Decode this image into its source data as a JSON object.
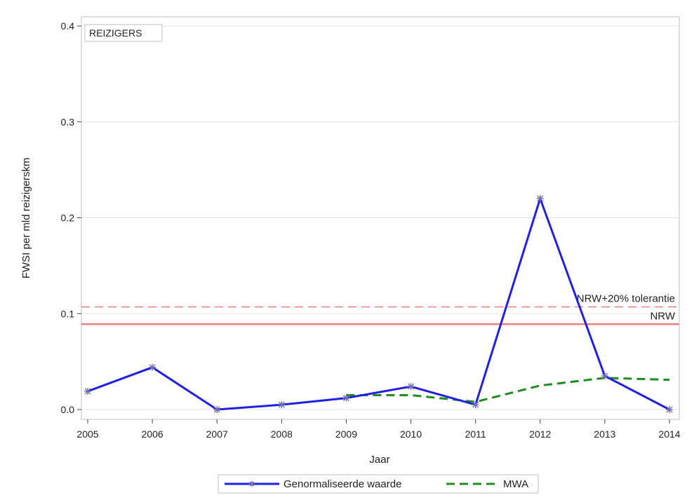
{
  "chart_data": {
    "type": "line",
    "inset_label": "REIZIGERS",
    "xlabel": "Jaar",
    "ylabel": "FWSI per mld reizigerskm",
    "x": [
      2005,
      2006,
      2007,
      2008,
      2009,
      2010,
      2011,
      2012,
      2013,
      2014
    ],
    "xlim": [
      2005,
      2014
    ],
    "ylim": [
      0,
      0.4
    ],
    "y_ticks": [
      0.0,
      0.1,
      0.2,
      0.3,
      0.4
    ],
    "y_tick_labels": [
      "0.0",
      "0.1",
      "0.2",
      "0.3",
      "0.4"
    ],
    "grid": true,
    "legend_position": "bottom-center",
    "series": [
      {
        "name": "Genormaliseerde waarde",
        "color": "#1f1fe6",
        "style": "solid-with-star-markers",
        "values": [
          0.019,
          0.044,
          0.0,
          0.005,
          0.012,
          0.024,
          0.005,
          0.22,
          0.035,
          0.0
        ]
      },
      {
        "name": "MWA",
        "color": "#1e8c1e",
        "style": "dashed",
        "x": [
          2009,
          2010,
          2011,
          2012,
          2013,
          2014
        ],
        "values": [
          0.015,
          0.015,
          0.008,
          0.025,
          0.033,
          0.031
        ]
      }
    ],
    "reference_lines": [
      {
        "label": "NRW+20% tolerantie",
        "value": 0.107,
        "color": "#f08080",
        "style": "dashed"
      },
      {
        "label": "NRW",
        "value": 0.089,
        "color": "#f08080",
        "style": "solid"
      }
    ]
  }
}
